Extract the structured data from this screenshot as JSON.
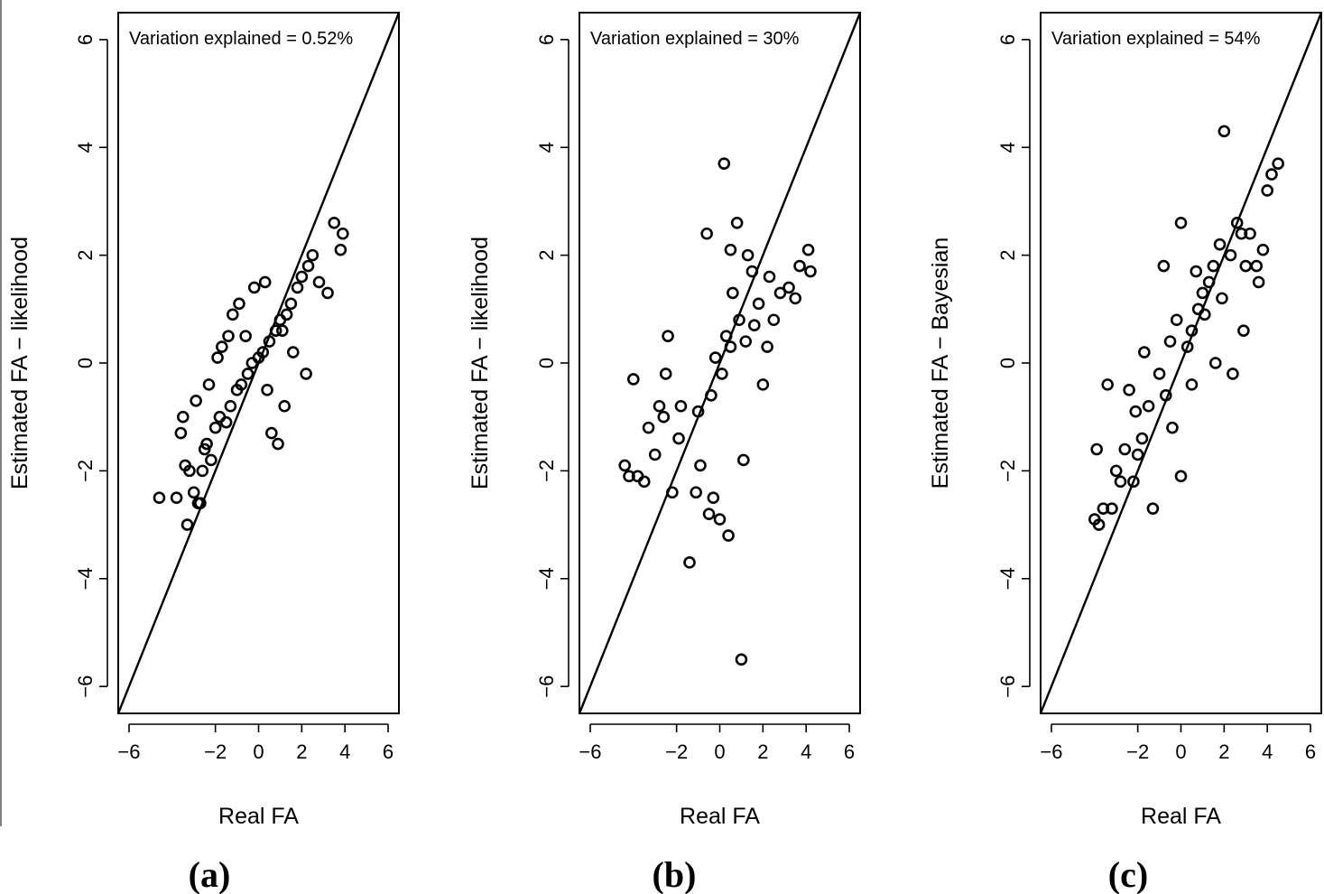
{
  "figure": {
    "panel_labels": [
      "(a)",
      "(b)",
      "(c)"
    ]
  },
  "chart_data": [
    {
      "type": "scatter",
      "panel": "(a)",
      "annotation": "Variation explained = 0.52%",
      "xlabel": "Real FA",
      "ylabel": "Estimated FA − likelihood",
      "xlim": [
        -6.5,
        6.5
      ],
      "ylim": [
        -6.5,
        6.5
      ],
      "x_ticks": [
        -6,
        -2,
        0,
        2,
        4,
        6
      ],
      "x_tick_labels": [
        "−6",
        "−2",
        "0",
        "2",
        "4",
        "6"
      ],
      "y_ticks": [
        -6,
        -4,
        -2,
        0,
        2,
        4,
        6
      ],
      "y_tick_labels": [
        "−6",
        "−4",
        "−2",
        "0",
        "2",
        "4",
        "6"
      ],
      "reference_line": "y = x",
      "points": {
        "x": [
          -4.6,
          -3.8,
          -3.3,
          -3.2,
          -3.0,
          -2.8,
          -2.7,
          -2.6,
          -2.5,
          -2.4,
          -2.2,
          -2.0,
          -1.8,
          -1.5,
          -1.3,
          -1.0,
          -0.8,
          -0.5,
          -0.3,
          0.0,
          0.2,
          0.5,
          0.8,
          1.0,
          1.3,
          1.5,
          1.8,
          2.0,
          2.3,
          2.5,
          2.8,
          3.2,
          3.5,
          3.8,
          3.9,
          -3.6,
          -3.5,
          -2.9,
          -1.9,
          -1.7,
          -1.2,
          -0.9,
          -0.6,
          -0.2,
          0.3,
          0.6,
          0.9,
          1.2,
          1.6,
          2.2,
          -3.4,
          -2.3,
          -1.4,
          0.4,
          1.1
        ],
        "y": [
          -2.5,
          -2.5,
          -3.0,
          -2.0,
          -2.4,
          -2.6,
          -2.6,
          -2.0,
          -1.6,
          -1.5,
          -1.8,
          -1.2,
          -1.0,
          -1.1,
          -0.8,
          -0.5,
          -0.4,
          -0.2,
          0.0,
          0.1,
          0.2,
          0.4,
          0.6,
          0.8,
          0.9,
          1.1,
          1.4,
          1.6,
          1.8,
          2.0,
          1.5,
          1.3,
          2.6,
          2.1,
          2.4,
          -1.3,
          -1.0,
          -0.7,
          0.1,
          0.3,
          0.9,
          1.1,
          0.5,
          1.4,
          1.5,
          -1.3,
          -1.5,
          -0.8,
          0.2,
          -0.2,
          -1.9,
          -0.4,
          0.5,
          -0.5,
          0.6
        ]
      }
    },
    {
      "type": "scatter",
      "panel": "(b)",
      "annotation": "Variation explained = 30%",
      "xlabel": "Real FA",
      "ylabel": "Estimated FA − likelihood",
      "xlim": [
        -6.5,
        6.5
      ],
      "ylim": [
        -6.5,
        6.5
      ],
      "x_ticks": [
        -6,
        -2,
        0,
        2,
        4,
        6
      ],
      "x_tick_labels": [
        "−6",
        "−2",
        "0",
        "2",
        "4",
        "6"
      ],
      "y_ticks": [
        -6,
        -4,
        -2,
        0,
        2,
        4,
        6
      ],
      "y_tick_labels": [
        "−6",
        "−4",
        "−2",
        "0",
        "2",
        "4",
        "6"
      ],
      "reference_line": "y = x",
      "points": {
        "x": [
          -4.4,
          -4.2,
          -4.0,
          -3.8,
          -3.5,
          -3.3,
          -3.0,
          -2.8,
          -2.5,
          -2.2,
          -1.8,
          -1.4,
          -1.1,
          -0.9,
          -0.6,
          -0.5,
          -0.3,
          0.0,
          0.2,
          0.4,
          0.5,
          0.8,
          1.0,
          1.1,
          1.3,
          1.5,
          1.8,
          2.0,
          2.3,
          2.5,
          2.8,
          3.2,
          3.5,
          3.7,
          4.1,
          4.2,
          0.1,
          0.5,
          0.9,
          -0.4,
          -0.2,
          0.3,
          1.2,
          -2.4,
          -2.6,
          -1.9,
          -1.0,
          0.6,
          1.6,
          2.2
        ],
        "y": [
          -1.9,
          -2.1,
          -0.3,
          -2.1,
          -2.2,
          -1.2,
          -1.7,
          -0.8,
          -0.2,
          -2.4,
          -0.8,
          -3.7,
          -2.4,
          -1.9,
          2.4,
          -2.8,
          -2.5,
          -2.9,
          3.7,
          -3.2,
          2.1,
          2.6,
          -5.5,
          -1.8,
          2.0,
          1.7,
          1.1,
          -0.4,
          1.6,
          0.8,
          1.3,
          1.4,
          1.2,
          1.8,
          2.1,
          1.7,
          -0.2,
          0.3,
          0.8,
          -0.6,
          0.1,
          0.5,
          0.4,
          0.5,
          -1.0,
          -1.4,
          -0.9,
          1.3,
          0.7,
          0.3
        ]
      }
    },
    {
      "type": "scatter",
      "panel": "(c)",
      "annotation": "Variation explained = 54%",
      "xlabel": "Real FA",
      "ylabel": "Estimated FA − Bayesian",
      "xlim": [
        -6.5,
        6.5
      ],
      "ylim": [
        -6.5,
        6.5
      ],
      "x_ticks": [
        -6,
        -2,
        0,
        2,
        4,
        6
      ],
      "x_tick_labels": [
        "−6",
        "−2",
        "0",
        "2",
        "4",
        "6"
      ],
      "y_ticks": [
        -6,
        -4,
        -2,
        0,
        2,
        4,
        6
      ],
      "y_tick_labels": [
        "−6",
        "−4",
        "−2",
        "0",
        "2",
        "4",
        "6"
      ],
      "reference_line": "y = x",
      "points": {
        "x": [
          -4.0,
          -3.8,
          -3.6,
          -3.4,
          -3.2,
          -3.0,
          -2.8,
          -2.6,
          -2.4,
          -2.2,
          -2.0,
          -1.8,
          -1.5,
          -1.3,
          -1.0,
          -0.8,
          -0.5,
          -0.2,
          0.0,
          0.3,
          0.5,
          0.8,
          1.0,
          1.3,
          1.5,
          1.8,
          2.0,
          2.3,
          2.6,
          2.8,
          3.0,
          3.2,
          3.5,
          3.8,
          4.0,
          4.2,
          4.5,
          -3.9,
          -2.1,
          -0.4,
          0.0,
          0.5,
          1.1,
          1.9,
          2.9,
          3.6,
          -1.7,
          -0.7,
          0.7,
          1.6,
          2.4
        ],
        "y": [
          -2.9,
          -3.0,
          -2.7,
          -0.4,
          -2.7,
          -2.0,
          -2.2,
          -1.6,
          -0.5,
          -2.2,
          -1.7,
          -1.4,
          -0.8,
          -2.7,
          -0.2,
          1.8,
          0.4,
          0.8,
          -2.1,
          0.3,
          0.6,
          1.0,
          1.3,
          1.5,
          1.8,
          2.2,
          4.3,
          2.0,
          2.6,
          2.4,
          1.8,
          2.4,
          1.8,
          2.1,
          3.2,
          3.5,
          3.7,
          -1.6,
          -0.9,
          -1.2,
          2.6,
          -0.4,
          0.9,
          1.2,
          0.6,
          1.5,
          0.2,
          -0.6,
          1.7,
          0.0,
          -0.2
        ]
      }
    }
  ]
}
